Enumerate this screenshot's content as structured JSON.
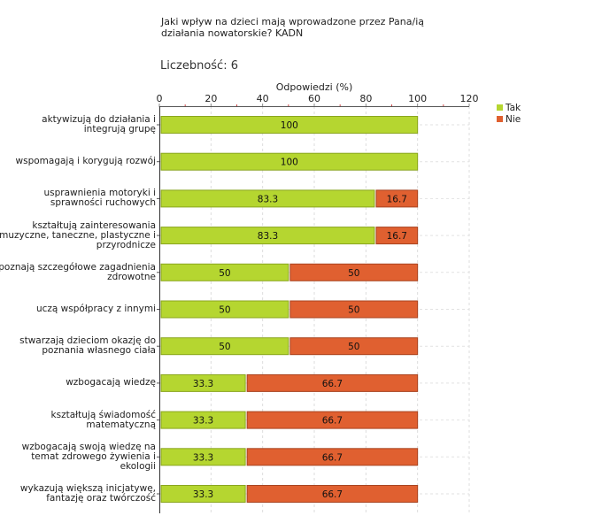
{
  "title": "Jaki wpływ na dzieci mają wprowadzone przez Pana/ią działania nowatorskie? KADN",
  "count_label": "Liczebność: 6",
  "chart_data": {
    "type": "bar",
    "orientation": "horizontal",
    "stacked": true,
    "xlabel": "Odpowiedzi (%)",
    "xlim": [
      0,
      120
    ],
    "xticks": [
      "0",
      "20",
      "40",
      "60",
      "80",
      "100",
      "120"
    ],
    "grid": true,
    "legend_position": "top-right",
    "categories": [
      "aktywizują do działania i integrują grupę",
      "wspomagają i korygują rozwój",
      "usprawnienia motoryki i sprawności ruchowych",
      "kształtują zainteresowania muzyczne, taneczne, plastyczne i przyrodnicze",
      "poznają szczegółowe zagadnienia zdrowotne",
      "uczą współpracy z innymi",
      "stwarzają dzieciom okazję do poznania własnego ciała",
      "wzbogacają wiedzę",
      "kształtują świadomość matematyczną",
      "wzbogacają swoją wiedzę na temat zdrowego żywienia i ekologii",
      "wykazują większą inicjatywę, fantazję oraz twórczość"
    ],
    "series": [
      {
        "name": "Tak",
        "color": "#b5d630",
        "values": [
          100,
          100,
          83.3,
          83.3,
          50,
          50,
          50,
          33.3,
          33.3,
          33.3,
          33.3
        ]
      },
      {
        "name": "Nie",
        "color": "#e06030",
        "values": [
          0,
          0,
          16.7,
          16.7,
          50,
          50,
          50,
          66.7,
          66.7,
          66.7,
          66.7
        ]
      }
    ]
  }
}
